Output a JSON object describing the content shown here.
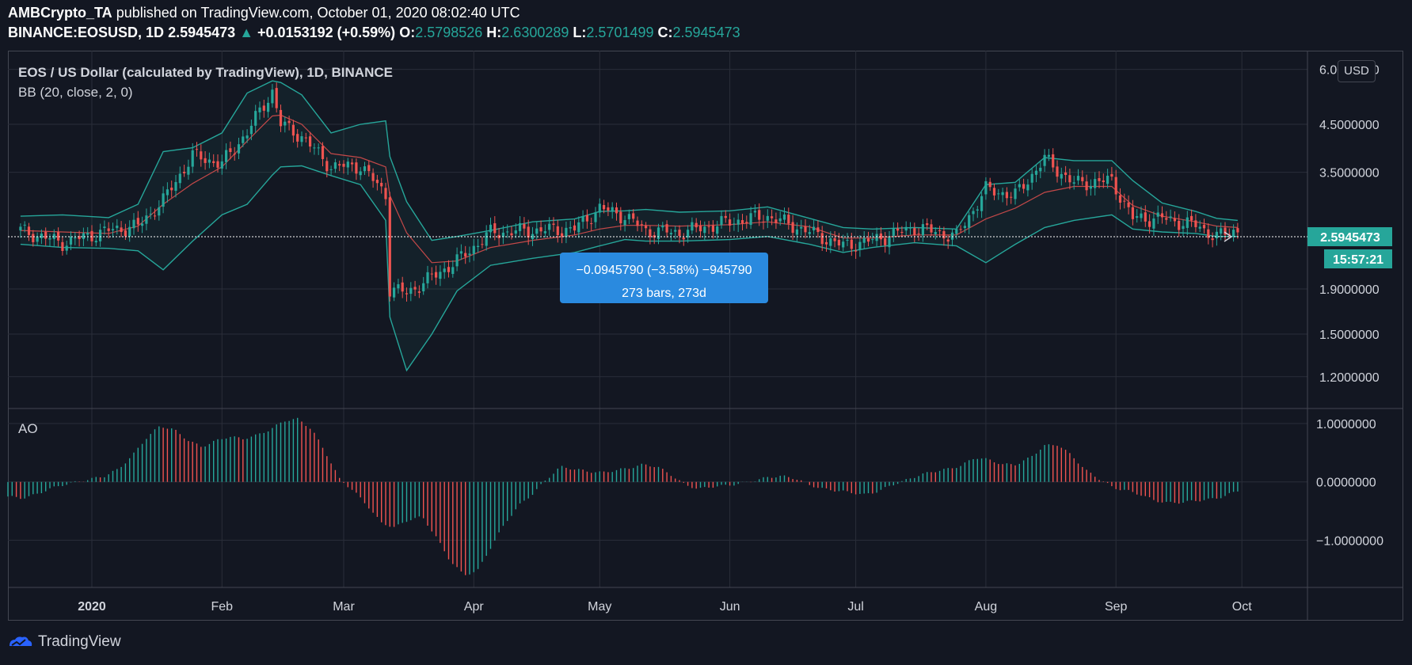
{
  "header": {
    "author": "AMBCrypto_TA",
    "published_text": "published on TradingView.com, October 01, 2020 08:02:40 UTC",
    "symbol": "BINANCE:EOSUSD",
    "interval": "1D",
    "last": "2.5945473",
    "change_text": "+0.0153192 (+0.59%)",
    "o_label": "O:",
    "o": "2.5798526",
    "h_label": "H:",
    "h": "2.6300289",
    "l_label": "L:",
    "l": "2.5701499",
    "c_label": "C:",
    "c": "2.5945473"
  },
  "legend": {
    "title": "EOS / US Dollar (calculated by TradingView), 1D, BINANCE",
    "indicator": "BB (20, close, 2, 0)",
    "oscillator": "AO"
  },
  "currency_button": "USD",
  "price_badge": "2.5945473",
  "countdown_badge": "15:57:21",
  "measure_tooltip": {
    "line1": "−0.0945790 (−3.58%) −945790",
    "line2": "273 bars, 273d"
  },
  "footer": {
    "brand": "TradingView"
  },
  "colors": {
    "background": "#131722",
    "up": "#26a69a",
    "down": "#ef5350",
    "bb_band": "#26a69a",
    "bb_basis": "#ef5350",
    "ao_up": "#26a69a",
    "ao_down": "#ef5350",
    "tooltip": "#2a8adf"
  },
  "chart_data": [
    {
      "type": "candlestick",
      "title": "EOS / US Dollar (calculated by TradingView), 1D, BINANCE",
      "ylabel": "USD",
      "yscale": "log",
      "ylim": [
        1.05,
        6.4
      ],
      "y_ticks": [
        "6.0000000",
        "4.5000000",
        "3.5000000",
        "1.9000000",
        "1.5000000",
        "1.2000000"
      ],
      "x_ticks": [
        "2020",
        "Feb",
        "Mar",
        "Apr",
        "May",
        "Jun",
        "Jul",
        "Aug",
        "Sep",
        "Oct"
      ],
      "last_price": 2.5945473,
      "series": [
        {
          "name": "EOSUSD",
          "x": [
            "2019-12-15",
            "2019-12-25",
            "2020-01-05",
            "2020-01-12",
            "2020-01-18",
            "2020-01-25",
            "2020-02-01",
            "2020-02-07",
            "2020-02-13",
            "2020-02-15",
            "2020-02-20",
            "2020-02-27",
            "2020-03-05",
            "2020-03-11",
            "2020-03-12",
            "2020-03-16",
            "2020-03-22",
            "2020-03-28",
            "2020-04-05",
            "2020-04-15",
            "2020-04-25",
            "2020-05-01",
            "2020-05-07",
            "2020-05-12",
            "2020-05-20",
            "2020-06-01",
            "2020-06-10",
            "2020-06-20",
            "2020-06-28",
            "2020-07-05",
            "2020-07-15",
            "2020-07-25",
            "2020-08-01",
            "2020-08-08",
            "2020-08-15",
            "2020-08-22",
            "2020-08-31",
            "2020-09-05",
            "2020-09-12",
            "2020-09-20",
            "2020-09-25",
            "2020-09-30"
          ],
          "y": [
            2.58,
            2.42,
            2.58,
            2.64,
            3.02,
            3.82,
            3.66,
            4.32,
            5.35,
            4.5,
            4.22,
            3.6,
            3.62,
            3.12,
            1.9,
            1.86,
            2.02,
            2.2,
            2.55,
            2.58,
            2.6,
            2.9,
            2.78,
            2.58,
            2.55,
            2.7,
            2.78,
            2.56,
            2.38,
            2.45,
            2.62,
            2.5,
            3.2,
            3.1,
            3.75,
            3.3,
            3.35,
            2.75,
            2.75,
            2.65,
            2.5,
            2.59
          ]
        }
      ],
      "bb": {
        "upper": [
          2.78,
          2.8,
          2.76,
          2.96,
          3.9,
          3.98,
          4.3,
          5.3,
          5.65,
          5.6,
          5.25,
          4.3,
          4.5,
          4.58,
          3.8,
          3.0,
          2.45,
          2.5,
          2.58,
          2.7,
          2.74,
          2.85,
          2.86,
          2.88,
          2.84,
          2.86,
          2.92,
          2.75,
          2.62,
          2.6,
          2.62,
          2.6,
          3.28,
          3.32,
          3.78,
          3.72,
          3.72,
          3.35,
          2.98,
          2.85,
          2.75,
          2.72
        ],
        "basis": [
          2.58,
          2.56,
          2.54,
          2.64,
          2.96,
          3.3,
          3.6,
          4.12,
          4.7,
          4.72,
          4.5,
          3.86,
          3.78,
          3.6,
          3.1,
          2.55,
          2.18,
          2.2,
          2.36,
          2.45,
          2.52,
          2.6,
          2.65,
          2.65,
          2.64,
          2.66,
          2.7,
          2.63,
          2.48,
          2.48,
          2.52,
          2.52,
          2.74,
          2.9,
          3.15,
          3.25,
          3.25,
          2.94,
          2.78,
          2.7,
          2.64,
          2.62
        ],
        "lower": [
          2.4,
          2.36,
          2.35,
          2.32,
          2.1,
          2.44,
          2.8,
          2.96,
          3.45,
          3.6,
          3.62,
          3.44,
          3.28,
          2.72,
          1.64,
          1.24,
          1.5,
          1.88,
          2.15,
          2.23,
          2.3,
          2.38,
          2.46,
          2.44,
          2.44,
          2.46,
          2.5,
          2.4,
          2.3,
          2.36,
          2.42,
          2.38,
          2.18,
          2.4,
          2.62,
          2.72,
          2.8,
          2.6,
          2.56,
          2.54,
          2.5,
          2.5
        ]
      }
    },
    {
      "type": "bar",
      "title": "AO",
      "ylim": [
        -1.7,
        1.15
      ],
      "y_ticks": [
        "1.0000000",
        "0.0000000",
        "−1.0000000"
      ],
      "series": [
        {
          "name": "AO",
          "values": [
            -0.25,
            -0.28,
            -0.22,
            -0.12,
            -0.05,
            0.0,
            0.05,
            0.1,
            0.22,
            0.45,
            0.75,
            0.96,
            0.9,
            0.72,
            0.6,
            0.7,
            0.78,
            0.74,
            0.8,
            0.9,
            1.05,
            1.08,
            0.9,
            0.5,
            0.05,
            -0.15,
            -0.4,
            -0.7,
            -0.78,
            -0.65,
            -0.6,
            -0.95,
            -1.35,
            -1.6,
            -1.52,
            -1.1,
            -0.7,
            -0.4,
            -0.2,
            0.05,
            0.26,
            0.22,
            0.18,
            0.16,
            0.2,
            0.24,
            0.3,
            0.26,
            0.12,
            -0.05,
            -0.12,
            -0.08,
            -0.06,
            -0.03,
            0.02,
            0.08,
            0.1,
            0.06,
            -0.05,
            -0.12,
            -0.15,
            -0.18,
            -0.22,
            -0.16,
            -0.05,
            0.03,
            0.12,
            0.18,
            0.22,
            0.28,
            0.42,
            0.38,
            0.3,
            0.3,
            0.42,
            0.62,
            0.64,
            0.45,
            0.2,
            0.05,
            -0.1,
            -0.15,
            -0.22,
            -0.32,
            -0.36,
            -0.35,
            -0.32,
            -0.3,
            -0.25,
            -0.15
          ]
        }
      ]
    }
  ]
}
